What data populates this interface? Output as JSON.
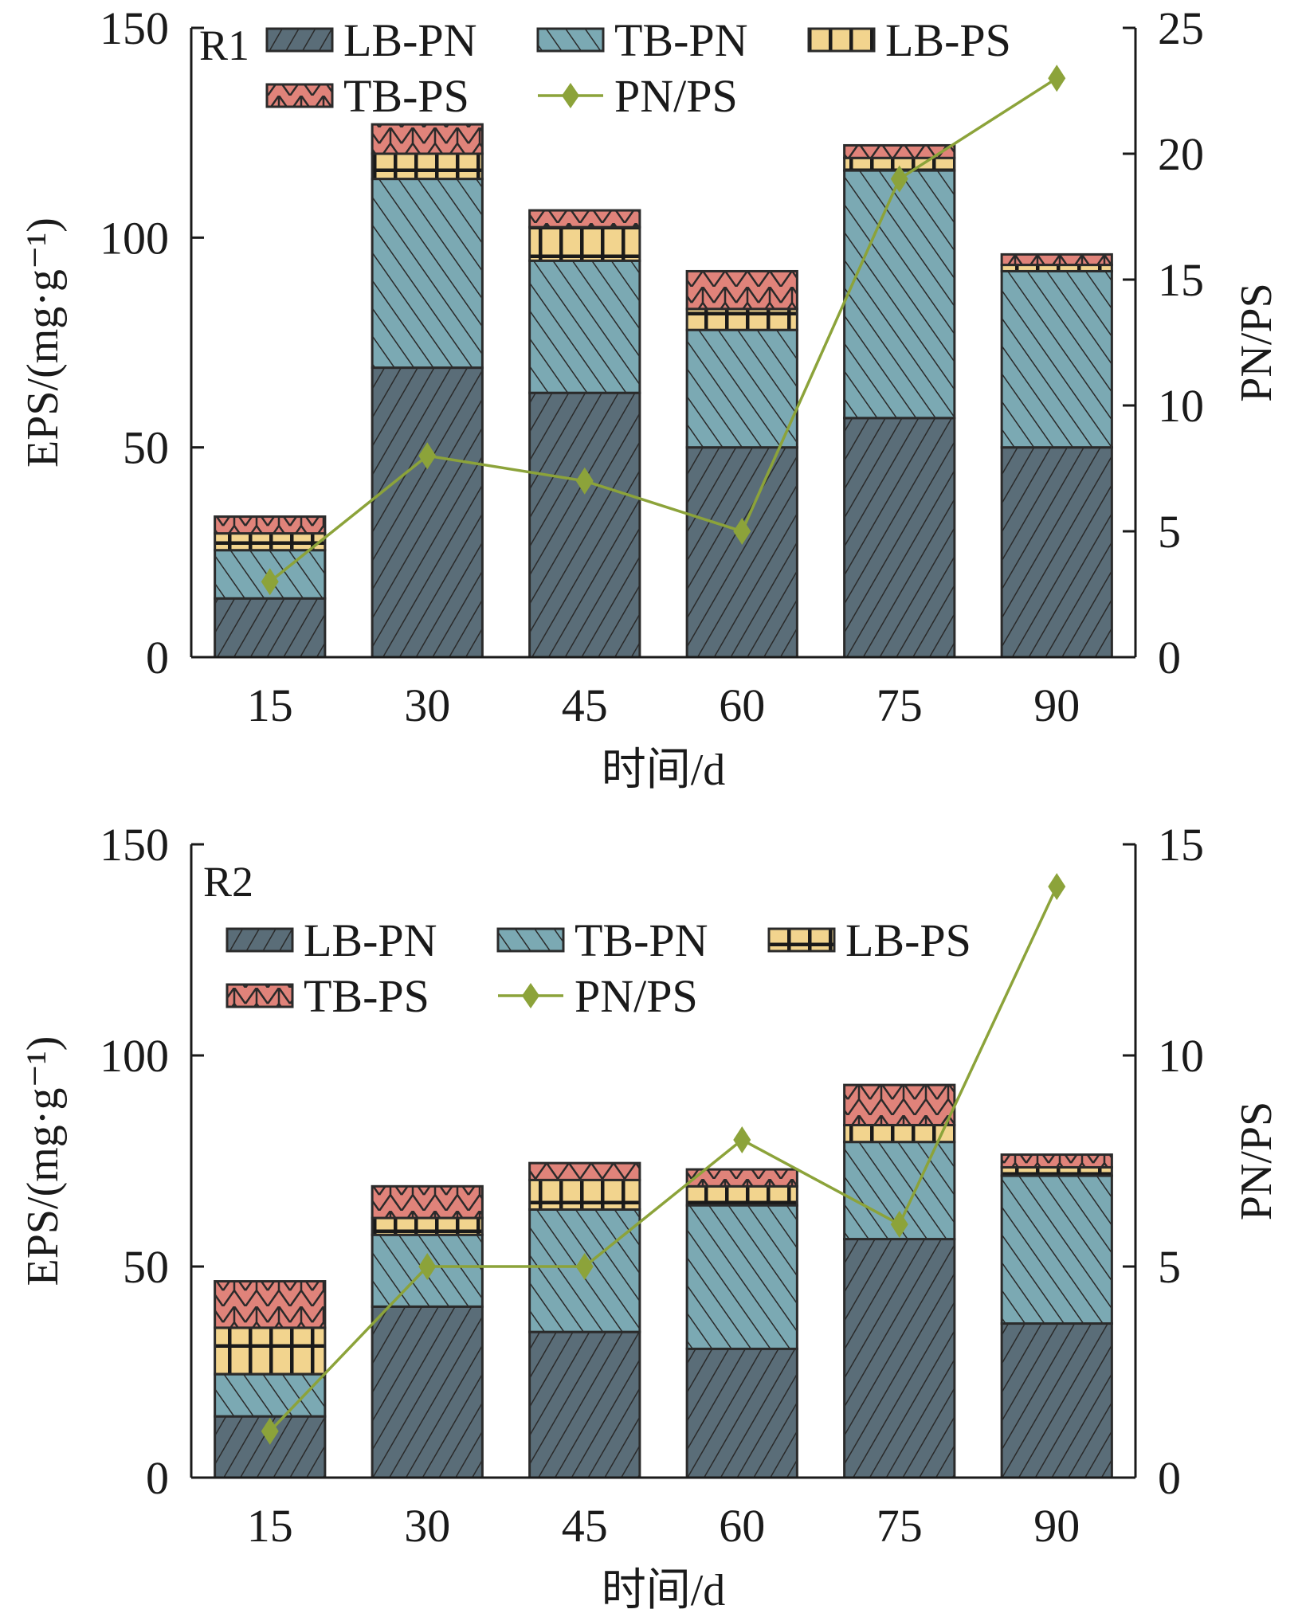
{
  "colors": {
    "LB-PN": "#5a6d78",
    "TB-PN": "#7ba9b3",
    "LB-PS": "#f2d48e",
    "TB-PS": "#e0837a",
    "PN/PS": "#8ca33a",
    "hatch": "#2a2a2a"
  },
  "chart_data": [
    {
      "type": "bar",
      "stacked": true,
      "panel_label": "R1",
      "xlabel": "时间/d",
      "ylabel": "EPS/(mg·g⁻¹)",
      "y2label": "PN/PS",
      "categories": [
        "15",
        "30",
        "45",
        "60",
        "75",
        "90"
      ],
      "ylim": [
        0,
        150
      ],
      "yticks": [
        0,
        50,
        100,
        150
      ],
      "y2lim": [
        0,
        25
      ],
      "y2ticks": [
        0,
        5,
        10,
        15,
        20,
        25
      ],
      "legend": [
        "LB-PN",
        "TB-PN",
        "LB-PS",
        "TB-PS",
        "PN/PS"
      ],
      "legend_position": "top",
      "series": [
        {
          "name": "LB-PN",
          "type": "bar",
          "values": [
            14,
            69,
            63,
            50,
            57,
            50
          ]
        },
        {
          "name": "TB-PN",
          "type": "bar",
          "values": [
            11.5,
            45,
            31.5,
            28,
            59,
            42
          ]
        },
        {
          "name": "LB-PS",
          "type": "bar",
          "values": [
            4,
            6,
            8,
            5,
            3,
            1.5
          ]
        },
        {
          "name": "TB-PS",
          "type": "bar",
          "values": [
            4,
            7,
            4,
            9,
            3,
            2.5
          ]
        },
        {
          "name": "PN/PS",
          "type": "line",
          "axis": "right",
          "values": [
            3,
            8,
            7,
            5,
            19,
            23
          ]
        }
      ]
    },
    {
      "type": "bar",
      "stacked": true,
      "panel_label": "R2",
      "xlabel": "时间/d",
      "ylabel": "EPS/(mg·g⁻¹)",
      "y2label": "PN/PS",
      "categories": [
        "15",
        "30",
        "45",
        "60",
        "75",
        "90"
      ],
      "ylim": [
        0,
        150
      ],
      "yticks": [
        0,
        50,
        100,
        150
      ],
      "y2lim": [
        0,
        15
      ],
      "y2ticks": [
        0,
        5,
        10,
        15
      ],
      "legend": [
        "LB-PN",
        "TB-PN",
        "LB-PS",
        "TB-PS",
        "PN/PS"
      ],
      "legend_position": "upper-left",
      "series": [
        {
          "name": "LB-PN",
          "type": "bar",
          "values": [
            14.5,
            40.5,
            34.5,
            30.5,
            56.5,
            36.5
          ]
        },
        {
          "name": "TB-PN",
          "type": "bar",
          "values": [
            10,
            17,
            29,
            34,
            23,
            35
          ]
        },
        {
          "name": "LB-PS",
          "type": "bar",
          "values": [
            11,
            4,
            7,
            4.5,
            4,
            2
          ]
        },
        {
          "name": "TB-PS",
          "type": "bar",
          "values": [
            11,
            7.5,
            4,
            4,
            9.5,
            3
          ]
        },
        {
          "name": "PN/PS",
          "type": "line",
          "axis": "right",
          "values": [
            1.1,
            5,
            5,
            8,
            6,
            14
          ]
        }
      ]
    }
  ]
}
